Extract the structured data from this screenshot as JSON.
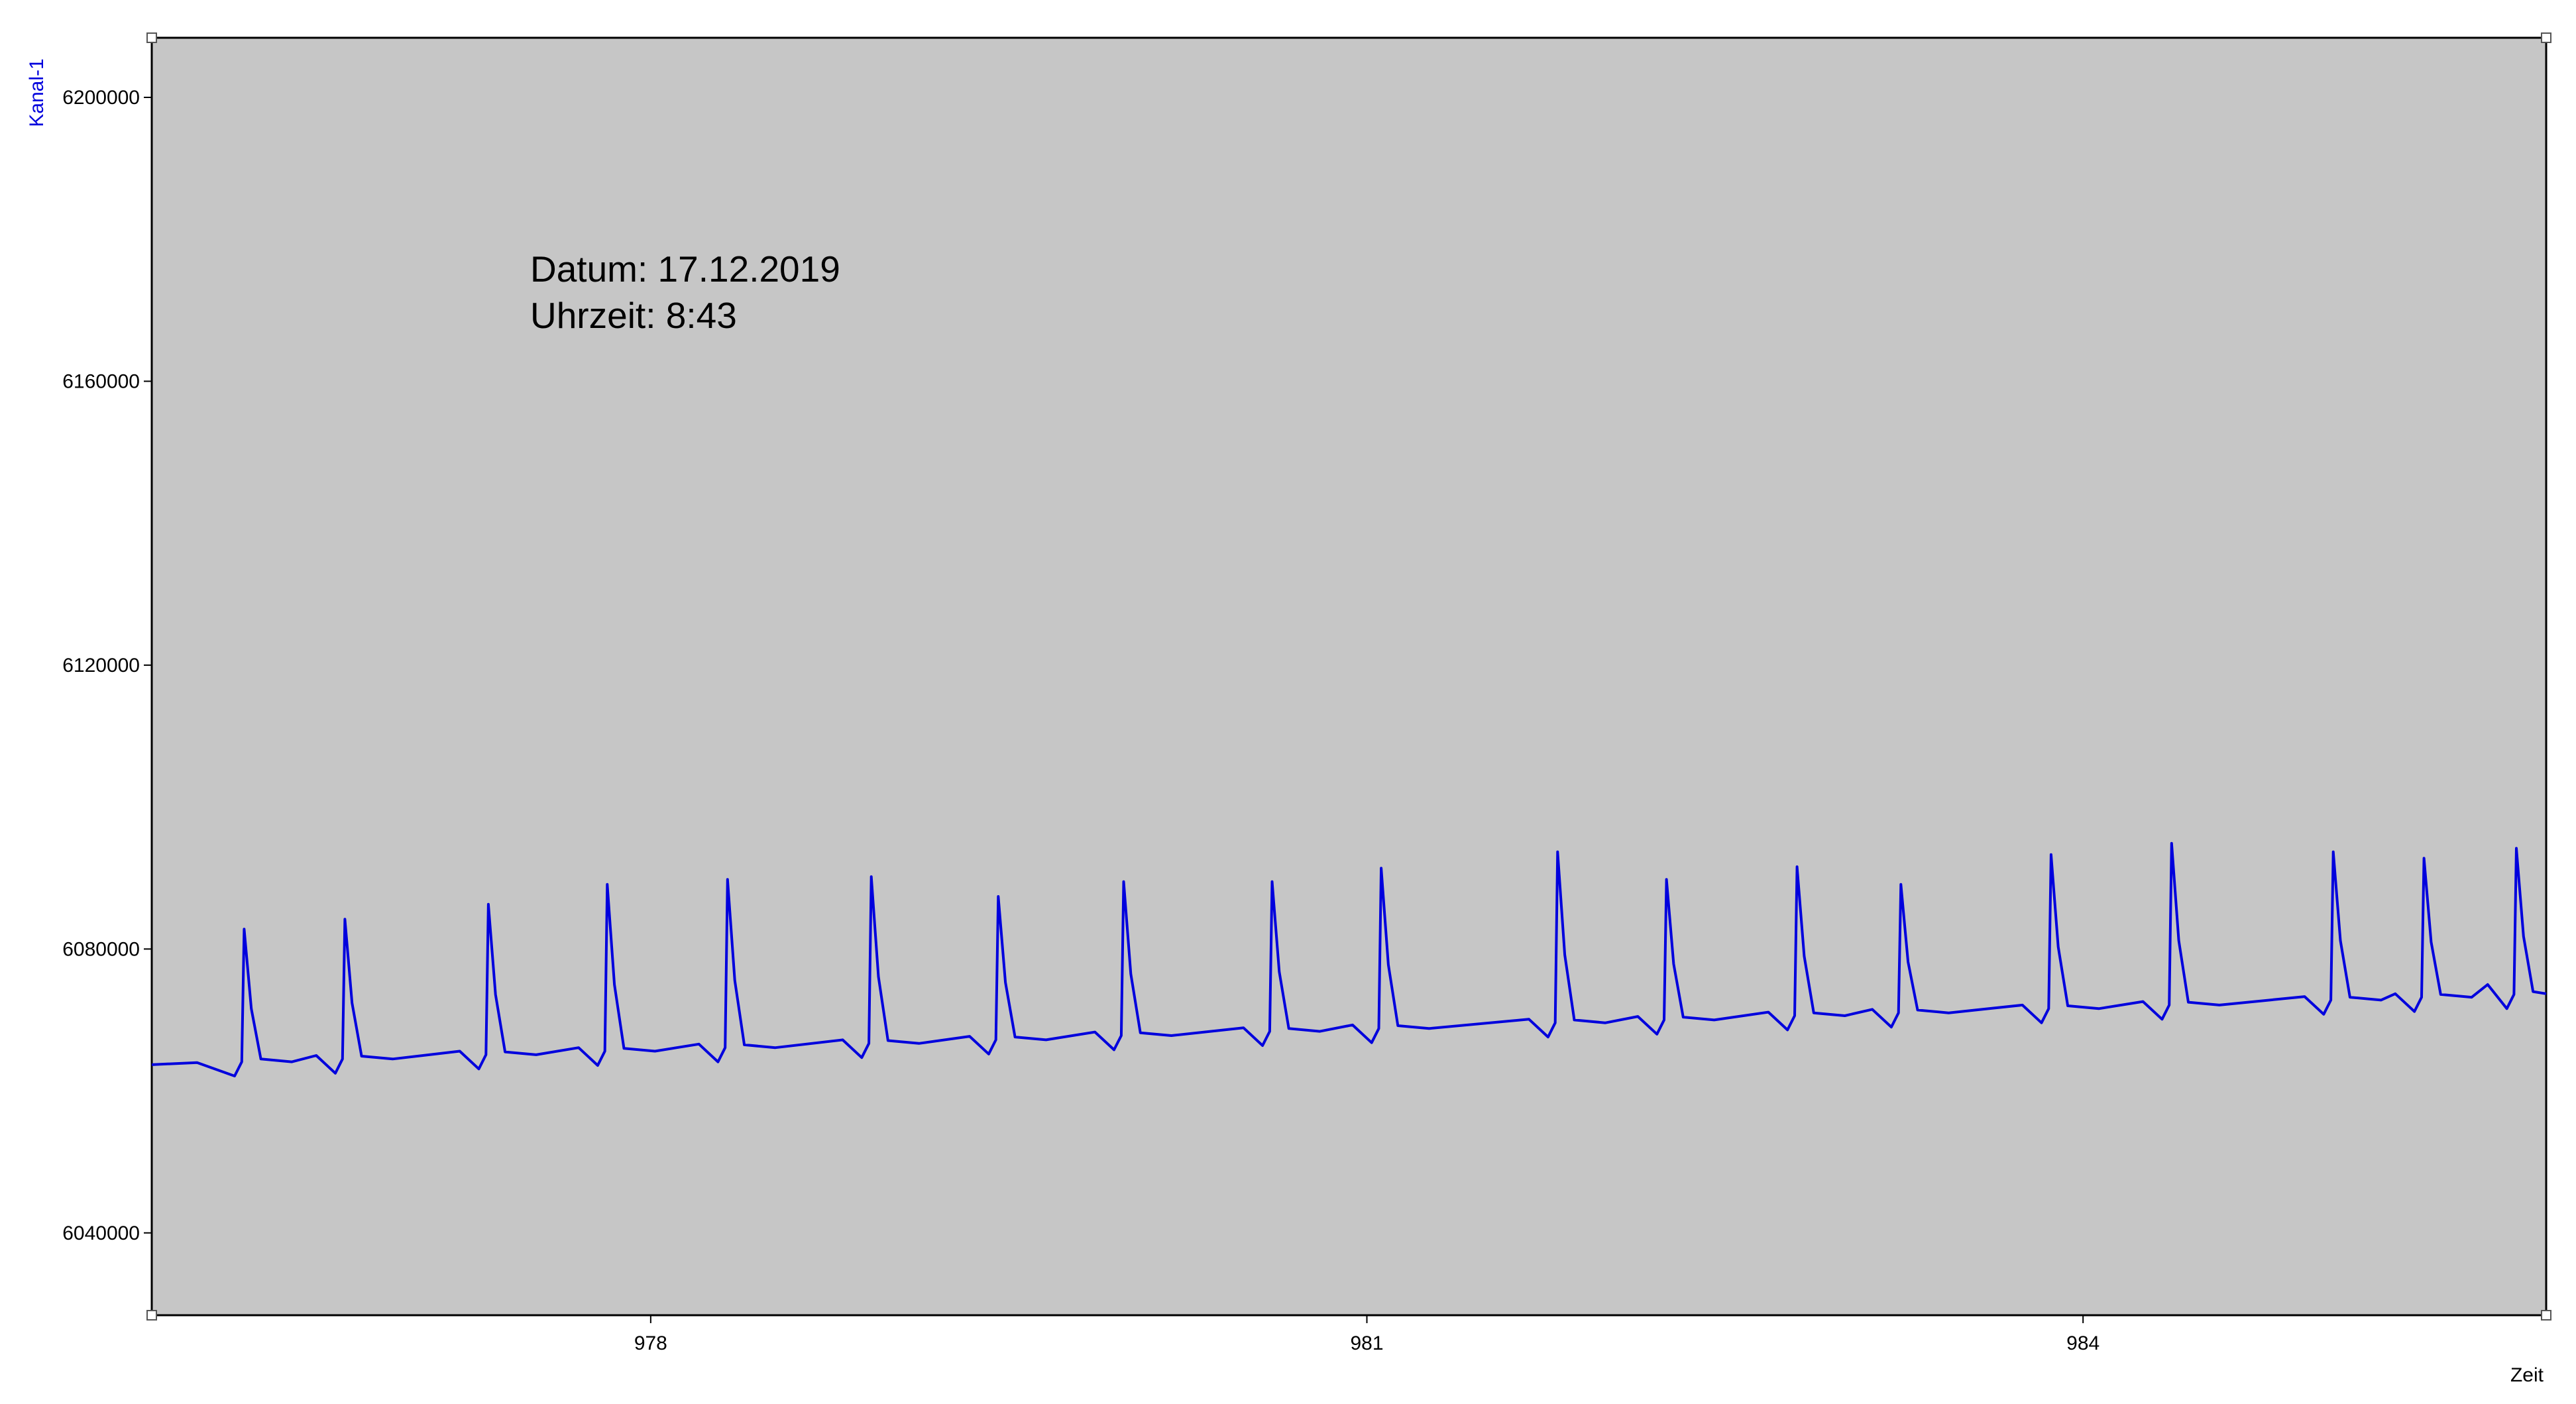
{
  "chart_data": {
    "type": "line",
    "y_label": "Kanal-1",
    "x_label": "Zeit",
    "annotations": [
      "Datum: 17.12.2019",
      "Uhrzeit: 8:43"
    ],
    "color": "#0000dd",
    "xlim": [
      975.91,
      985.94
    ],
    "xticks": [
      978,
      981,
      984
    ],
    "ylim": [
      6028400,
      6208400
    ],
    "yticks": [
      6040000,
      6080000,
      6120000,
      6160000,
      6200000
    ],
    "x": [
      975.91,
      976.1,
      976.257,
      976.287,
      976.297,
      976.327,
      976.367,
      976.497,
      976.599,
      976.679,
      976.709,
      976.719,
      976.749,
      976.789,
      976.919,
      977.2,
      977.28,
      977.31,
      977.32,
      977.35,
      977.39,
      977.52,
      977.698,
      977.778,
      977.808,
      977.818,
      977.848,
      977.888,
      978.018,
      978.202,
      978.282,
      978.312,
      978.322,
      978.352,
      978.392,
      978.522,
      978.804,
      978.884,
      978.914,
      978.924,
      978.954,
      978.994,
      979.124,
      979.336,
      979.416,
      979.446,
      979.456,
      979.486,
      979.526,
      979.656,
      979.861,
      979.941,
      979.971,
      979.981,
      980.011,
      980.051,
      980.181,
      980.483,
      980.563,
      980.593,
      980.603,
      980.633,
      980.673,
      980.803,
      980.94,
      981.02,
      981.05,
      981.06,
      981.09,
      981.13,
      981.26,
      981.679,
      981.759,
      981.789,
      981.799,
      981.829,
      981.869,
      981.999,
      982.135,
      982.215,
      982.245,
      982.255,
      982.285,
      982.325,
      982.455,
      982.682,
      982.762,
      982.792,
      982.802,
      982.832,
      982.872,
      983.002,
      983.117,
      983.197,
      983.227,
      983.237,
      983.267,
      983.307,
      983.437,
      983.746,
      983.826,
      983.856,
      983.866,
      983.896,
      983.936,
      984.066,
      984.251,
      984.331,
      984.361,
      984.371,
      984.401,
      984.441,
      984.571,
      984.928,
      985.008,
      985.038,
      985.048,
      985.078,
      985.118,
      985.248,
      985.308,
      985.388,
      985.418,
      985.428,
      985.458,
      985.498,
      985.628,
      985.695,
      985.775,
      985.805,
      985.815,
      985.845,
      985.885,
      985.94
    ],
    "values": [
      6063700,
      6064000,
      6062100,
      6064100,
      6082800,
      6071600,
      6064500,
      6064100,
      6065000,
      6062500,
      6064500,
      6084200,
      6072400,
      6064900,
      6064500,
      6065600,
      6063100,
      6065100,
      6086300,
      6073600,
      6065500,
      6065100,
      6066100,
      6063600,
      6065600,
      6089100,
      6075000,
      6066000,
      6065600,
      6066600,
      6064100,
      6066100,
      6089800,
      6075600,
      6066500,
      6066100,
      6067200,
      6064700,
      6066700,
      6090200,
      6076100,
      6067100,
      6066700,
      6067700,
      6065200,
      6067200,
      6087400,
      6075300,
      6067600,
      6067200,
      6068300,
      6065800,
      6067800,
      6089500,
      6076500,
      6068200,
      6067800,
      6068900,
      6066400,
      6068400,
      6089500,
      6076800,
      6068800,
      6068400,
      6069300,
      6066800,
      6068800,
      6091400,
      6077800,
      6069200,
      6068800,
      6070100,
      6067600,
      6069600,
      6093700,
      6079200,
      6070000,
      6069600,
      6070500,
      6068000,
      6070000,
      6089800,
      6077900,
      6070400,
      6070000,
      6071100,
      6068600,
      6070600,
      6091600,
      6079000,
      6071000,
      6070600,
      6071500,
      6069000,
      6071000,
      6089100,
      6078200,
      6071400,
      6071000,
      6072100,
      6069600,
      6071600,
      6093300,
      6080300,
      6072000,
      6071600,
      6072600,
      6070100,
      6072100,
      6094900,
      6081200,
      6072500,
      6072100,
      6073300,
      6070800,
      6072800,
      6093700,
      6081200,
      6073200,
      6072800,
      6073700,
      6071200,
      6073200,
      6092800,
      6081000,
      6073600,
      6073200,
      6075000,
      6071600,
      6073600,
      6094200,
      6081800,
      6074000,
      6073700
    ]
  }
}
